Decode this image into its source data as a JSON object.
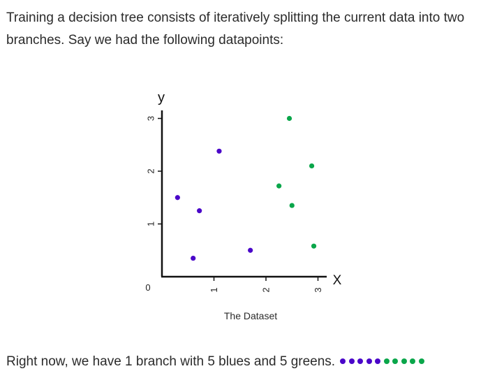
{
  "intro": {
    "line1": "Training a decision tree consists of iteratively splitting the current data into two",
    "line2": "branches. Say we had the following datapoints:"
  },
  "colors": {
    "blue": "#4a06c9",
    "green": "#0aa64a",
    "axis": "#111111",
    "text": "#2b2b2b"
  },
  "chart_data": {
    "type": "scatter",
    "caption": "The Dataset",
    "xlabel": "X",
    "ylabel": "y",
    "xlim": [
      0,
      3.2
    ],
    "ylim": [
      0,
      3.2
    ],
    "xticks": [
      1,
      2,
      3
    ],
    "yticks": [
      1,
      2,
      3
    ],
    "origin_label": "0",
    "grid": false,
    "series": [
      {
        "color": "blue",
        "points": [
          [
            0.3,
            1.5
          ],
          [
            0.6,
            0.35
          ],
          [
            0.72,
            1.25
          ],
          [
            1.1,
            2.38
          ],
          [
            1.7,
            0.5
          ]
        ]
      },
      {
        "color": "green",
        "points": [
          [
            2.25,
            1.72
          ],
          [
            2.45,
            3.0
          ],
          [
            2.5,
            1.35
          ],
          [
            2.88,
            2.1
          ],
          [
            2.92,
            0.58
          ]
        ]
      }
    ]
  },
  "outro": {
    "text": "Right now, we have 1 branch with 5 blues and 5 greens.",
    "dots": [
      "blue",
      "blue",
      "blue",
      "blue",
      "blue",
      "green",
      "green",
      "green",
      "green",
      "green"
    ]
  }
}
